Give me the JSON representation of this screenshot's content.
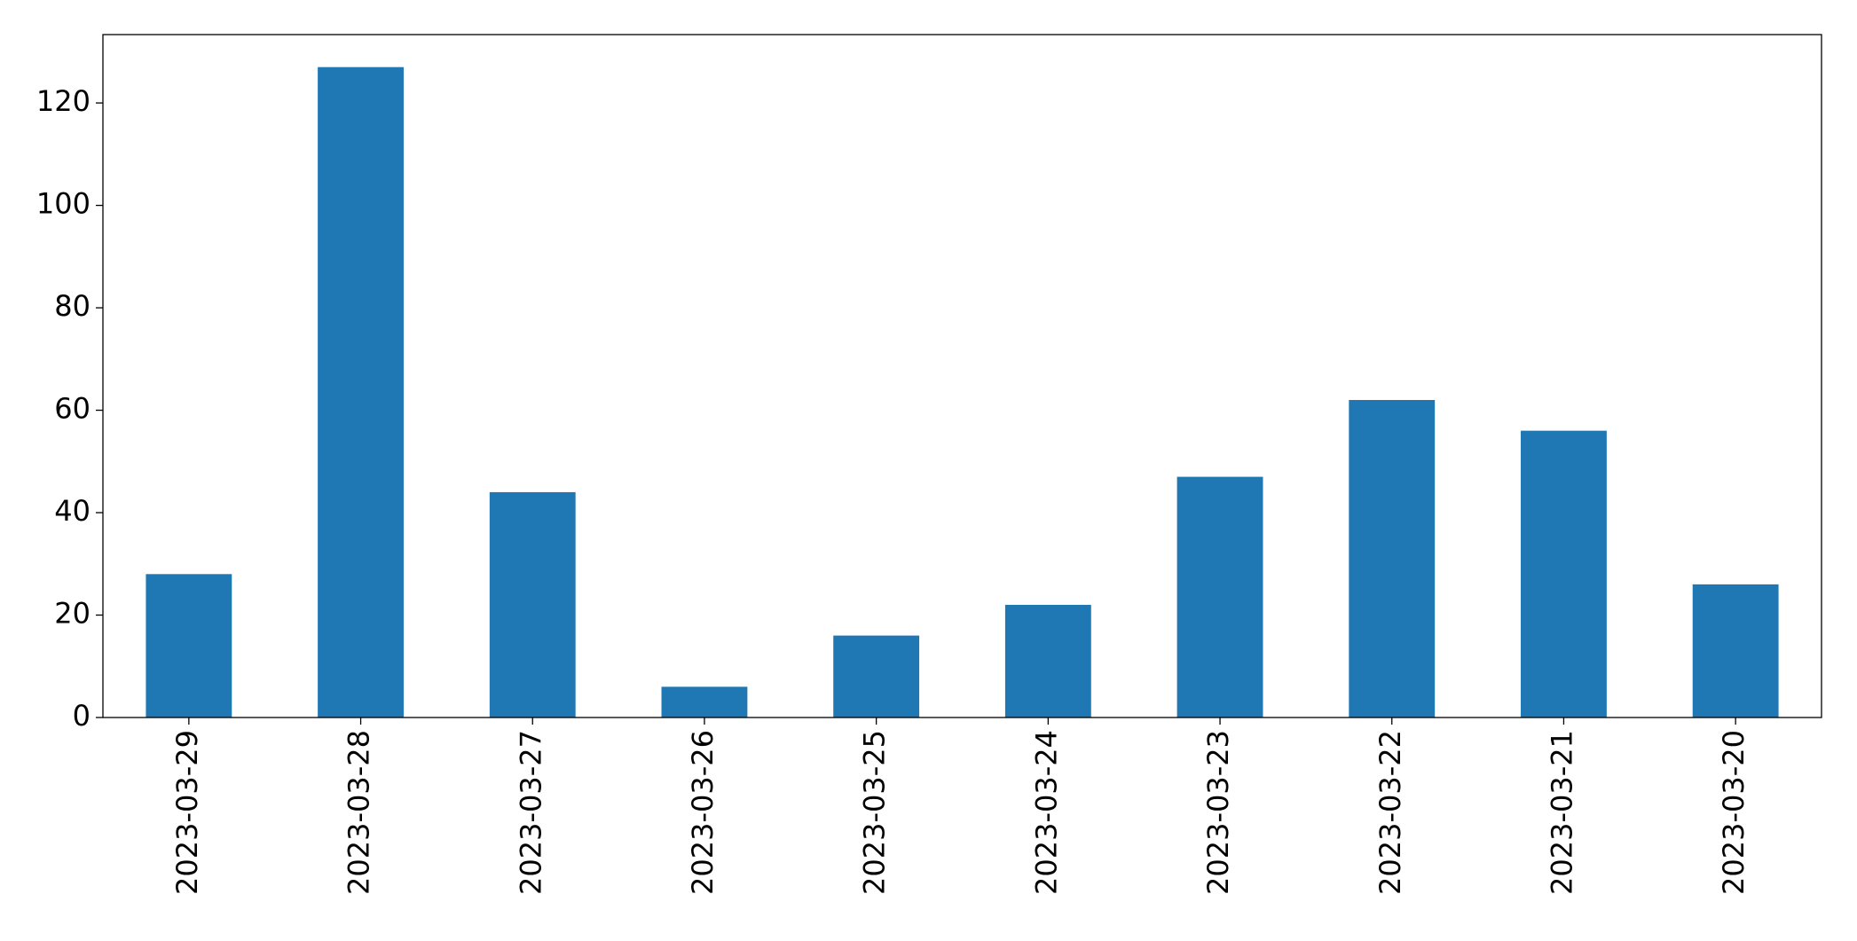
{
  "chart_data": {
    "type": "bar",
    "categories": [
      "2023-03-29",
      "2023-03-28",
      "2023-03-27",
      "2023-03-26",
      "2023-03-25",
      "2023-03-24",
      "2023-03-23",
      "2023-03-22",
      "2023-03-21",
      "2023-03-20"
    ],
    "values": [
      28,
      127,
      44,
      6,
      16,
      22,
      47,
      62,
      56,
      26
    ],
    "color": "#1f77b4",
    "ylim": [
      0,
      133.35
    ],
    "yticks": [
      0,
      20,
      40,
      60,
      80,
      100,
      120
    ],
    "grid": false
  }
}
